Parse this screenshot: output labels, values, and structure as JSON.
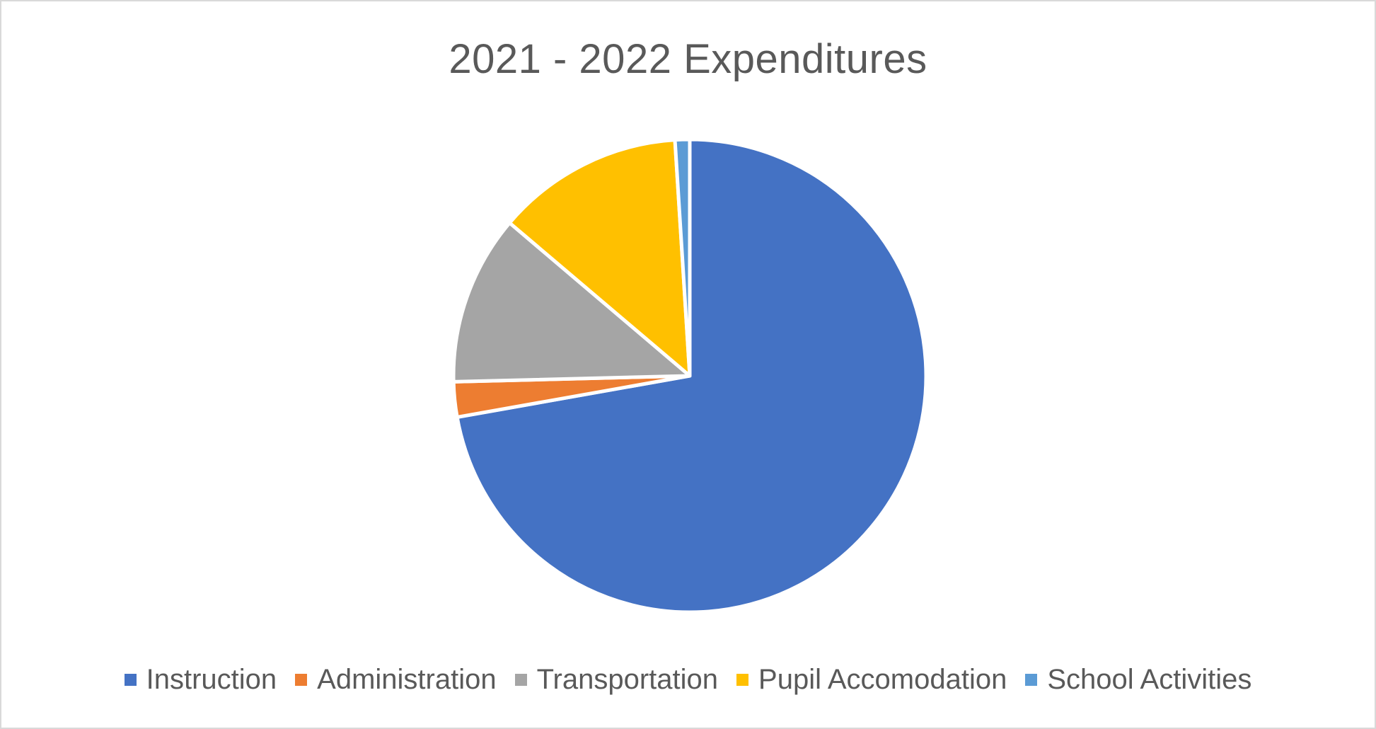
{
  "chart_data": {
    "type": "pie",
    "title": "2021 - 2022 Expenditures",
    "legend_position": "bottom",
    "slices": [
      {
        "label": "Instruction",
        "value": 72.2,
        "color": "#4472C4"
      },
      {
        "label": "Administration",
        "value": 2.4,
        "color": "#ED7D31"
      },
      {
        "label": "Transportation",
        "value": 11.6,
        "color": "#A5A5A5"
      },
      {
        "label": "Pupil Accomodation",
        "value": 12.8,
        "color": "#FFC000"
      },
      {
        "label": "School Activities",
        "value": 1.0,
        "color": "#5B9BD5"
      }
    ]
  }
}
